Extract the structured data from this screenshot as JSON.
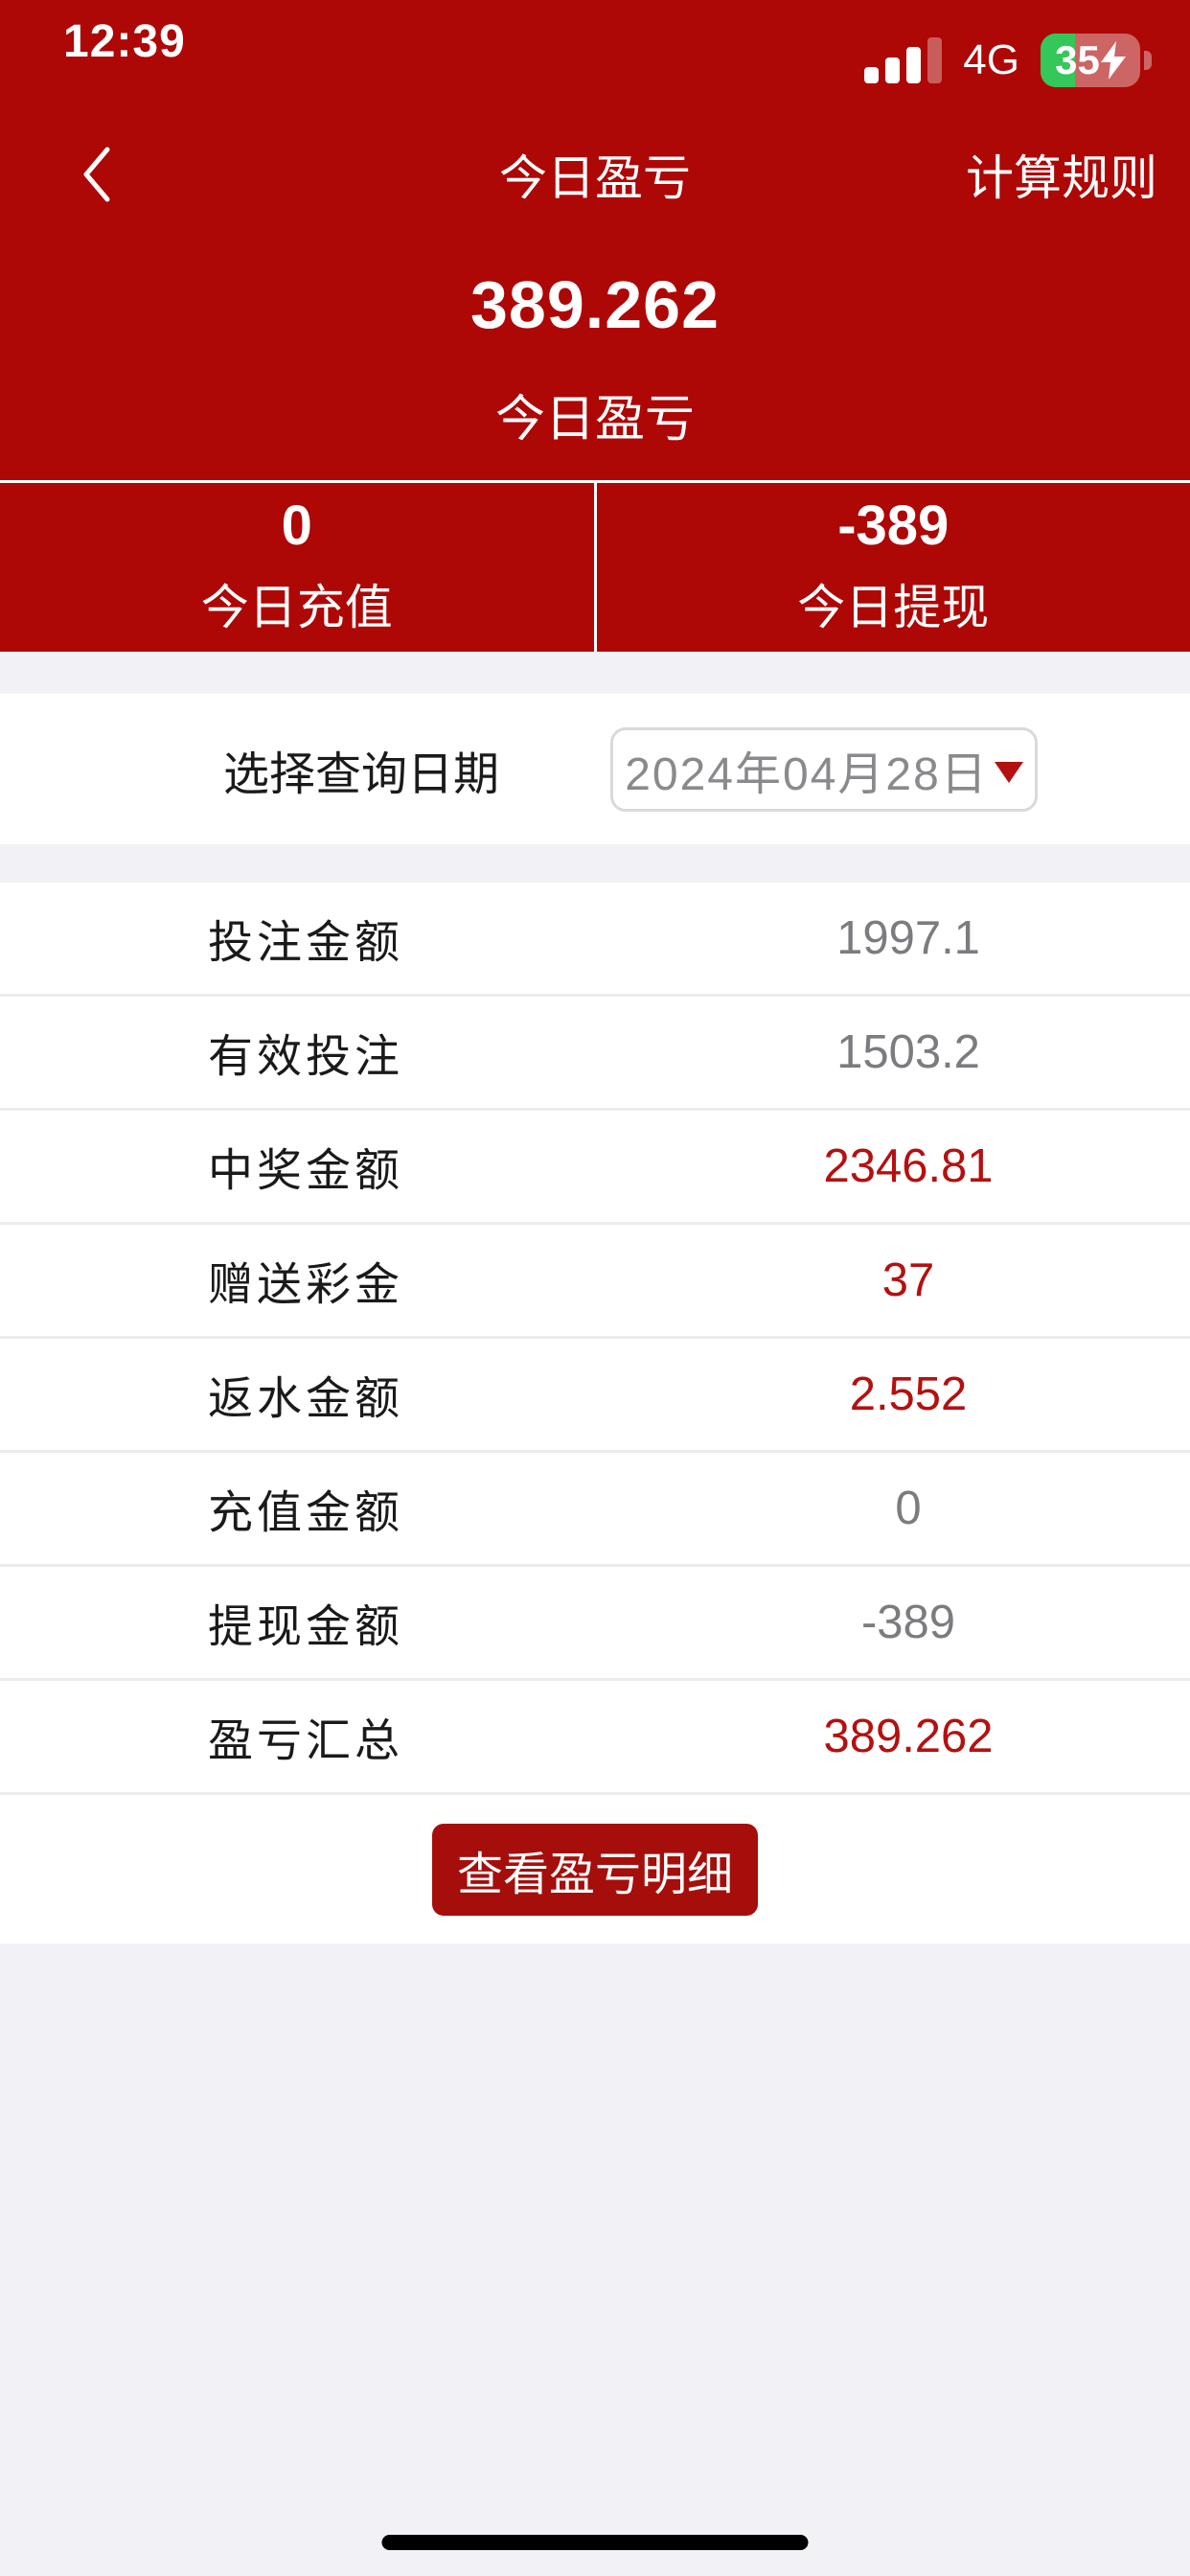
{
  "status_bar": {
    "time": "12:39",
    "network": "4G",
    "battery_percent": "35",
    "battery_charging": true,
    "signal_bars_filled": 3,
    "signal_bars_total": 4
  },
  "nav": {
    "title": "今日盈亏",
    "right_action": "计算规则"
  },
  "summary": {
    "amount": "389.262",
    "label": "今日盈亏"
  },
  "stats": [
    {
      "value": "0",
      "label": "今日充值"
    },
    {
      "value": "-389",
      "label": "今日提现"
    }
  ],
  "date_picker": {
    "label": "选择查询日期",
    "value": "2024年04月28日"
  },
  "rows": [
    {
      "label": "投注金额",
      "value": "1997.1",
      "highlight": false
    },
    {
      "label": "有效投注",
      "value": "1503.2",
      "highlight": false
    },
    {
      "label": "中奖金额",
      "value": "2346.81",
      "highlight": true
    },
    {
      "label": "赠送彩金",
      "value": "37",
      "highlight": true
    },
    {
      "label": "返水金额",
      "value": "2.552",
      "highlight": true
    },
    {
      "label": "充值金额",
      "value": "0",
      "highlight": false
    },
    {
      "label": "提现金额",
      "value": "-389",
      "highlight": false
    },
    {
      "label": "盈亏汇总",
      "value": "389.262",
      "highlight": true
    }
  ],
  "button": {
    "label": "查看盈亏明细"
  },
  "colors": {
    "header_red": "#ad0706",
    "accent_red": "#b31110",
    "button_red": "#a50e0b",
    "battery_green": "#34c759",
    "background_gray": "#f2f1f6"
  }
}
